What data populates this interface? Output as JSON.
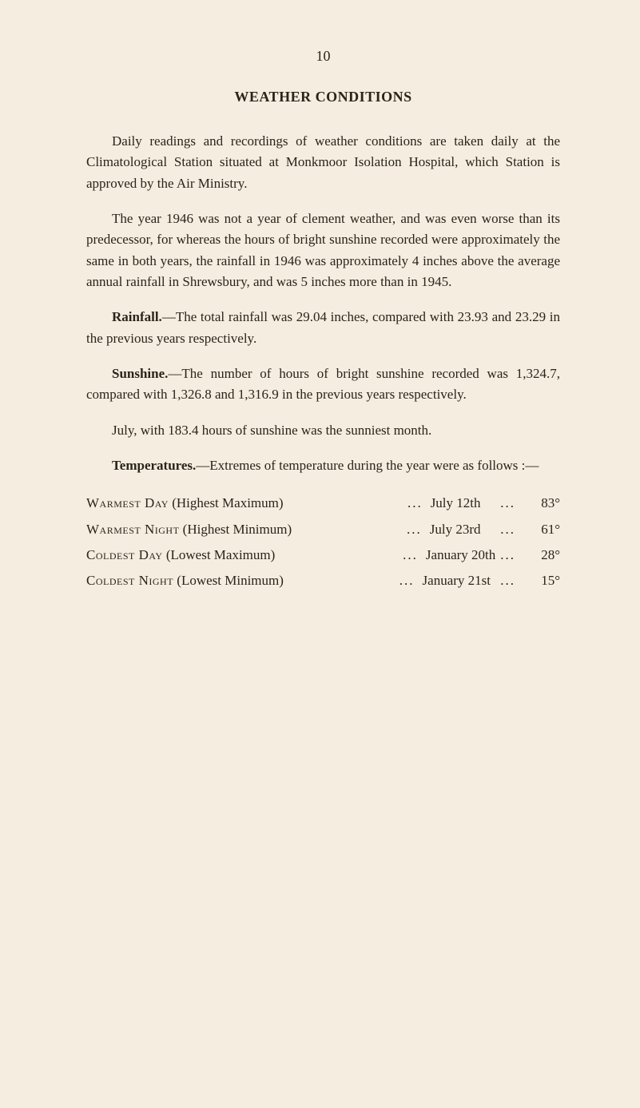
{
  "page_number": "10",
  "title": "WEATHER CONDITIONS",
  "paragraphs": {
    "p1": "Daily readings and recordings of weather conditions are taken daily at the Climatological Station situated at Monkmoor Isolation Hospital, which Station is approved by the Air Ministry.",
    "p2": "The year 1946 was not a year of clement weather, and was even worse than its predecessor, for whereas the hours of bright sunshine recorded were approximately the same in both years, the rainfall in 1946 was approximately 4 inches above the average annual rainfall in Shrewsbury, and was 5 inches more than in 1945.",
    "p3_lead": "Rainfall.",
    "p3_body": "—The total rainfall was 29.04 inches, compared with 23.93 and 23.29 in the previous years respectively.",
    "p4_lead": "Sunshine.",
    "p4_body": "—The number of hours of bright sunshine recorded was 1,324.7, compared with 1,326.8 and 1,316.9 in the previous years respectively.",
    "p5": "July, with 183.4 hours of sunshine was the sunniest month.",
    "p6_lead": "Temperatures.",
    "p6_body": "—Extremes of temperature during the year were as follows :—"
  },
  "temperature_table": {
    "rows": [
      {
        "label_caps": "Warmest Day",
        "label_rest": " (Highest Maximum)",
        "date": "July 12th",
        "value": "83°"
      },
      {
        "label_caps": "Warmest Night",
        "label_rest": " (Highest Minimum)",
        "date": "July 23rd",
        "value": "61°"
      },
      {
        "label_caps": "Coldest Day",
        "label_rest": " (Lowest Maximum)",
        "date": "January 20th",
        "value": "28°"
      },
      {
        "label_caps": "Coldest Night",
        "label_rest": " (Lowest Minimum)",
        "date": "January 21st",
        "value": "15°"
      }
    ]
  },
  "colors": {
    "background": "#f5ede0",
    "text": "#2a2419"
  }
}
